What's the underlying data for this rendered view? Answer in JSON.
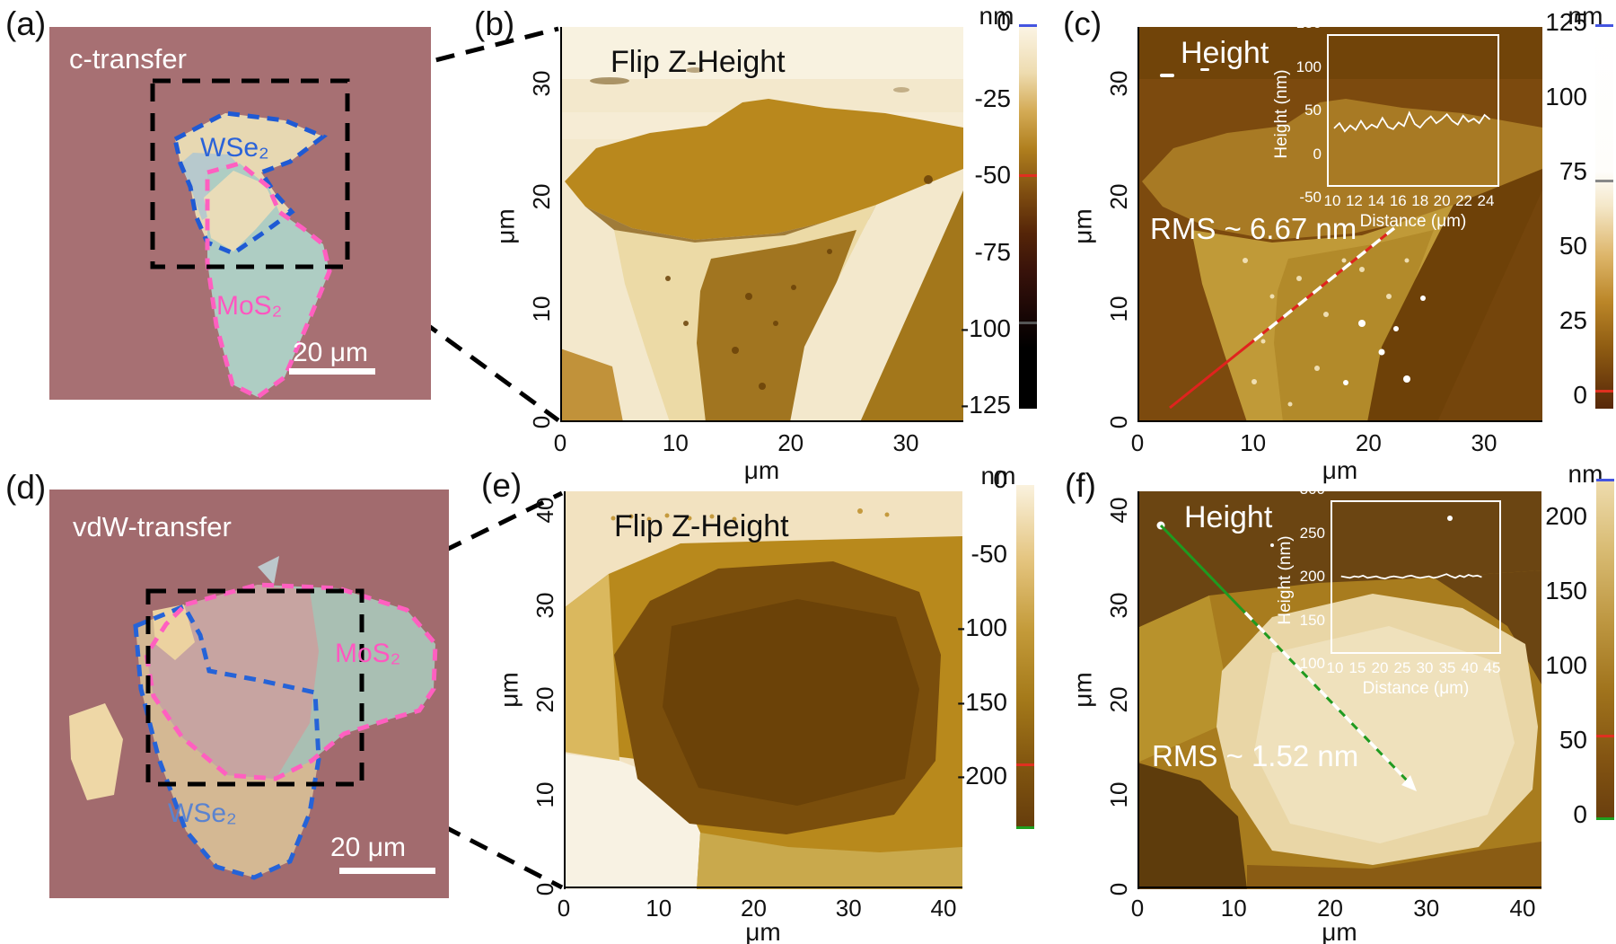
{
  "panels": {
    "a": {
      "label": "(a)",
      "method": "c-transfer",
      "wse2_label": "WSe₂",
      "mos2_label": "MoS₂",
      "scale_bar": "20 μm"
    },
    "b": {
      "label": "(b)",
      "title": "Flip Z-Height",
      "xlabel": "μm",
      "ylabel": "μm",
      "x_ticks": [
        "0",
        "10",
        "20",
        "30"
      ],
      "y_ticks": [
        "30",
        "20",
        "10",
        "0"
      ],
      "colorbar": {
        "unit": "nm",
        "ticks": [
          "0",
          "-25",
          "-50",
          "-75",
          "-100",
          "-125"
        ]
      }
    },
    "c": {
      "label": "(c)",
      "title": "Height",
      "rms": "RMS ~ 6.67 nm",
      "xlabel": "μm",
      "ylabel": "μm",
      "x_ticks": [
        "0",
        "10",
        "20",
        "30"
      ],
      "y_ticks": [
        "30",
        "20",
        "10",
        "0"
      ],
      "colorbar": {
        "unit": "nm",
        "ticks": [
          "125",
          "100",
          "75",
          "50",
          "25",
          "0"
        ]
      }
    },
    "d": {
      "label": "(d)",
      "method": "vdW-transfer",
      "wse2_label": "WSe₂",
      "mos2_label": "MoS₂",
      "scale_bar": "20 μm"
    },
    "e": {
      "label": "(e)",
      "title": "Flip Z-Height",
      "xlabel": "μm",
      "ylabel": "μm",
      "x_ticks": [
        "0",
        "10",
        "20",
        "30",
        "40"
      ],
      "y_ticks": [
        "40",
        "30",
        "20",
        "10",
        "0"
      ],
      "colorbar": {
        "unit": "nm",
        "ticks": [
          "0",
          "-50",
          "-100",
          "-150",
          "-200"
        ]
      }
    },
    "f": {
      "label": "(f)",
      "title": "Height",
      "rms": "RMS ~ 1.52 nm",
      "xlabel": "μm",
      "ylabel": "μm",
      "x_ticks": [
        "0",
        "10",
        "20",
        "30",
        "40"
      ],
      "y_ticks": [
        "40",
        "30",
        "20",
        "10",
        "0"
      ],
      "colorbar": {
        "unit": "nm",
        "ticks": [
          "200",
          "150",
          "100",
          "50",
          "0"
        ]
      }
    }
  },
  "colors": {
    "wse2_outline": "#1f5ad4",
    "mos2_outline": "#ff5fc0",
    "annotation_box": "#000000",
    "profile_line_c": "#e0231e",
    "profile_line_f": "#1f9a20",
    "colorbar_over_cap": "#4455e0",
    "colorbar_under_cap": "#1fa01f",
    "colorbar_marker": "#e03020"
  },
  "chart_data": [
    {
      "type": "line",
      "name": "panel-c-inset-profile",
      "xlabel": "Distance (μm)",
      "ylabel": "Height (nm)",
      "xlim": [
        9.5,
        25.2
      ],
      "ylim": [
        -50,
        150
      ],
      "x_ticks": [
        "10",
        "12",
        "14",
        "16",
        "18",
        "20",
        "22",
        "24"
      ],
      "y_ticks": [
        "150",
        "100",
        "50",
        "0",
        "-50"
      ],
      "line_color": "#ffffff",
      "x": [
        10,
        10.5,
        11,
        11.5,
        12,
        12.5,
        13,
        13.5,
        14,
        14.5,
        15,
        15.5,
        16,
        16.5,
        17,
        17.5,
        18,
        18.5,
        19,
        19.5,
        20,
        20.5,
        21,
        21.5,
        22,
        22.5,
        23,
        23.5,
        24,
        24.5
      ],
      "y": [
        26,
        33,
        22,
        30,
        24,
        36,
        25,
        31,
        27,
        40,
        28,
        25,
        34,
        29,
        47,
        32,
        27,
        36,
        42,
        33,
        38,
        45,
        36,
        31,
        43,
        35,
        39,
        33,
        44,
        38
      ]
    },
    {
      "type": "line",
      "name": "panel-f-inset-profile",
      "xlabel": "Distance (μm)",
      "ylabel": "Height (nm)",
      "xlim": [
        9,
        47
      ],
      "ylim": [
        100,
        300
      ],
      "x_ticks": [
        "10",
        "15",
        "20",
        "25",
        "30",
        "35",
        "40",
        "45"
      ],
      "y_ticks": [
        "300",
        "250",
        "200",
        "150",
        "100"
      ],
      "line_color": "#ffffff",
      "x": [
        11,
        12,
        13,
        14,
        15,
        16,
        17,
        18,
        19,
        20,
        21,
        22,
        23,
        24,
        25,
        26,
        27,
        28,
        29,
        30,
        31,
        32,
        33,
        34,
        35,
        36,
        37,
        38,
        39,
        40,
        41,
        42,
        43
      ],
      "y": [
        201,
        200,
        199,
        201,
        200,
        202,
        199,
        200,
        201,
        199,
        198,
        200,
        201,
        200,
        199,
        201,
        202,
        200,
        199,
        200,
        201,
        199,
        200,
        202,
        204,
        201,
        199,
        202,
        200,
        203,
        201,
        202,
        200
      ]
    }
  ]
}
